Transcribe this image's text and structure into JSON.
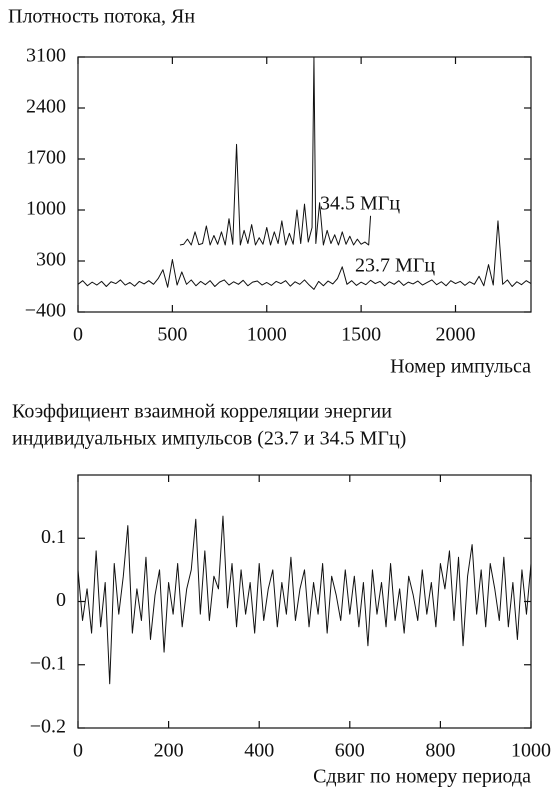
{
  "chart_data": [
    {
      "type": "line",
      "ylabel": "Плотность потока, Ян",
      "xlabel": "Номер импульса",
      "xlim": [
        0,
        2400
      ],
      "ylim": [
        -400,
        3100
      ],
      "xticks": [
        0,
        500,
        1000,
        1500,
        2000
      ],
      "yticks": [
        {
          "value": -400,
          "label": "−400"
        },
        300,
        1000,
        1700,
        2400,
        3100
      ],
      "series": [
        {
          "name": "23.7 МГц",
          "color": "#111111",
          "x": [
            0,
            25,
            50,
            75,
            100,
            125,
            150,
            175,
            200,
            225,
            250,
            275,
            300,
            325,
            350,
            375,
            400,
            425,
            450,
            475,
            500,
            525,
            550,
            575,
            600,
            625,
            650,
            675,
            700,
            725,
            750,
            775,
            800,
            825,
            850,
            875,
            900,
            925,
            950,
            975,
            1000,
            1025,
            1050,
            1075,
            1100,
            1125,
            1150,
            1175,
            1200,
            1225,
            1250,
            1275,
            1300,
            1325,
            1350,
            1375,
            1400,
            1425,
            1450,
            1475,
            1500,
            1525,
            1550,
            1575,
            1600,
            1625,
            1650,
            1675,
            1700,
            1725,
            1750,
            1775,
            1800,
            1825,
            1850,
            1875,
            1900,
            1925,
            1950,
            1975,
            2000,
            2025,
            2050,
            2075,
            2100,
            2125,
            2150,
            2175,
            2200,
            2225,
            2250,
            2275,
            2300,
            2325,
            2350,
            2375,
            2400
          ],
          "values": [
            -20,
            30,
            -40,
            10,
            -30,
            20,
            -50,
            15,
            -10,
            40,
            -30,
            5,
            -45,
            20,
            -15,
            30,
            -20,
            60,
            180,
            -60,
            320,
            -30,
            150,
            -20,
            40,
            -40,
            20,
            -25,
            30,
            -50,
            10,
            40,
            -30,
            15,
            -20,
            35,
            -40,
            10,
            25,
            -30,
            5,
            -35,
            20,
            -10,
            30,
            -45,
            15,
            -20,
            40,
            -30,
            -90,
            20,
            -40,
            25,
            -15,
            60,
            220,
            -20,
            30,
            -35,
            10,
            -25,
            35,
            -10,
            20,
            -40,
            15,
            -20,
            30,
            -35,
            10,
            -15,
            25,
            -30,
            5,
            40,
            -25,
            15,
            -40,
            30,
            -10,
            20,
            -35,
            15,
            -20,
            90,
            -40,
            250,
            -30,
            850,
            -20,
            40,
            -50,
            15,
            -25,
            30,
            -10
          ]
        },
        {
          "name": "34.5 МГц",
          "color": "#111111",
          "x": [
            540,
            560,
            580,
            600,
            620,
            640,
            660,
            680,
            700,
            720,
            740,
            760,
            780,
            800,
            820,
            840,
            860,
            880,
            900,
            920,
            940,
            960,
            980,
            1000,
            1020,
            1040,
            1060,
            1080,
            1100,
            1120,
            1140,
            1160,
            1180,
            1200,
            1220,
            1240,
            1250,
            1260,
            1280,
            1300,
            1320,
            1340,
            1360,
            1380,
            1400,
            1420,
            1440,
            1460,
            1480,
            1500,
            1520,
            1540,
            1550
          ],
          "values": [
            520,
            530,
            600,
            520,
            700,
            525,
            540,
            780,
            520,
            650,
            530,
            700,
            520,
            880,
            530,
            1900,
            520,
            720,
            540,
            800,
            520,
            620,
            530,
            760,
            520,
            700,
            540,
            850,
            520,
            680,
            530,
            1000,
            540,
            1080,
            560,
            760,
            3100,
            540,
            1100,
            520,
            720,
            540,
            660,
            520,
            700,
            530,
            640,
            520,
            600,
            530,
            560,
            520,
            920
          ]
        }
      ]
    },
    {
      "type": "line",
      "title": [
        "Коэффициент взаимной корреляции энергии",
        "индивидуальных импульсов (23.7 и 34.5 МГц)"
      ],
      "xlabel": "Сдвиг по номеру периода",
      "xlim": [
        0,
        1000
      ],
      "ylim": [
        -0.2,
        0.2
      ],
      "xticks": [
        0,
        200,
        400,
        600,
        800,
        1000
      ],
      "yticks": [
        {
          "value": -0.2,
          "label": "−0.2"
        },
        {
          "value": -0.1,
          "label": "−0.1"
        },
        0,
        0.1
      ],
      "series": [
        {
          "color": "#111111",
          "x": [
            0,
            10,
            20,
            30,
            40,
            50,
            60,
            70,
            80,
            90,
            100,
            110,
            120,
            130,
            140,
            150,
            160,
            170,
            180,
            190,
            200,
            210,
            220,
            230,
            240,
            250,
            260,
            270,
            280,
            290,
            300,
            310,
            320,
            330,
            340,
            350,
            360,
            370,
            380,
            390,
            400,
            410,
            420,
            430,
            440,
            450,
            460,
            470,
            480,
            490,
            500,
            510,
            520,
            530,
            540,
            550,
            560,
            570,
            580,
            590,
            600,
            610,
            620,
            630,
            640,
            650,
            660,
            670,
            680,
            690,
            700,
            710,
            720,
            730,
            740,
            750,
            760,
            770,
            780,
            790,
            800,
            810,
            820,
            830,
            840,
            850,
            860,
            870,
            880,
            890,
            900,
            910,
            920,
            930,
            940,
            950,
            960,
            970,
            980,
            990,
            1000
          ],
          "values": [
            0.05,
            -0.03,
            0.02,
            -0.05,
            0.08,
            -0.04,
            0.03,
            -0.13,
            0.06,
            -0.02,
            0.04,
            0.12,
            -0.05,
            0.02,
            -0.03,
            0.07,
            -0.06,
            0.01,
            0.05,
            -0.08,
            0.03,
            -0.02,
            0.06,
            -0.04,
            0.02,
            0.05,
            0.13,
            -0.02,
            0.08,
            -0.03,
            0.04,
            0.02,
            0.135,
            -0.01,
            0.06,
            -0.04,
            0.05,
            -0.02,
            0.03,
            -0.05,
            0.06,
            -0.03,
            0.02,
            0.05,
            -0.04,
            0.03,
            -0.02,
            0.07,
            -0.03,
            0.02,
            0.05,
            -0.04,
            0.03,
            -0.02,
            0.06,
            -0.05,
            0.04,
            0.01,
            -0.03,
            0.05,
            -0.02,
            0.04,
            -0.04,
            0.03,
            -0.07,
            0.05,
            -0.02,
            0.03,
            -0.04,
            0.06,
            -0.03,
            0.02,
            -0.05,
            0.04,
            0.01,
            -0.03,
            0.05,
            -0.02,
            0.03,
            -0.04,
            0.06,
            0.02,
            0.08,
            -0.03,
            0.07,
            -0.07,
            0.04,
            0.09,
            -0.02,
            0.05,
            -0.04,
            0.06,
            0.02,
            -0.03,
            0.07,
            -0.04,
            0.03,
            -0.06,
            0.05,
            -0.02,
            0.06
          ]
        }
      ]
    }
  ]
}
